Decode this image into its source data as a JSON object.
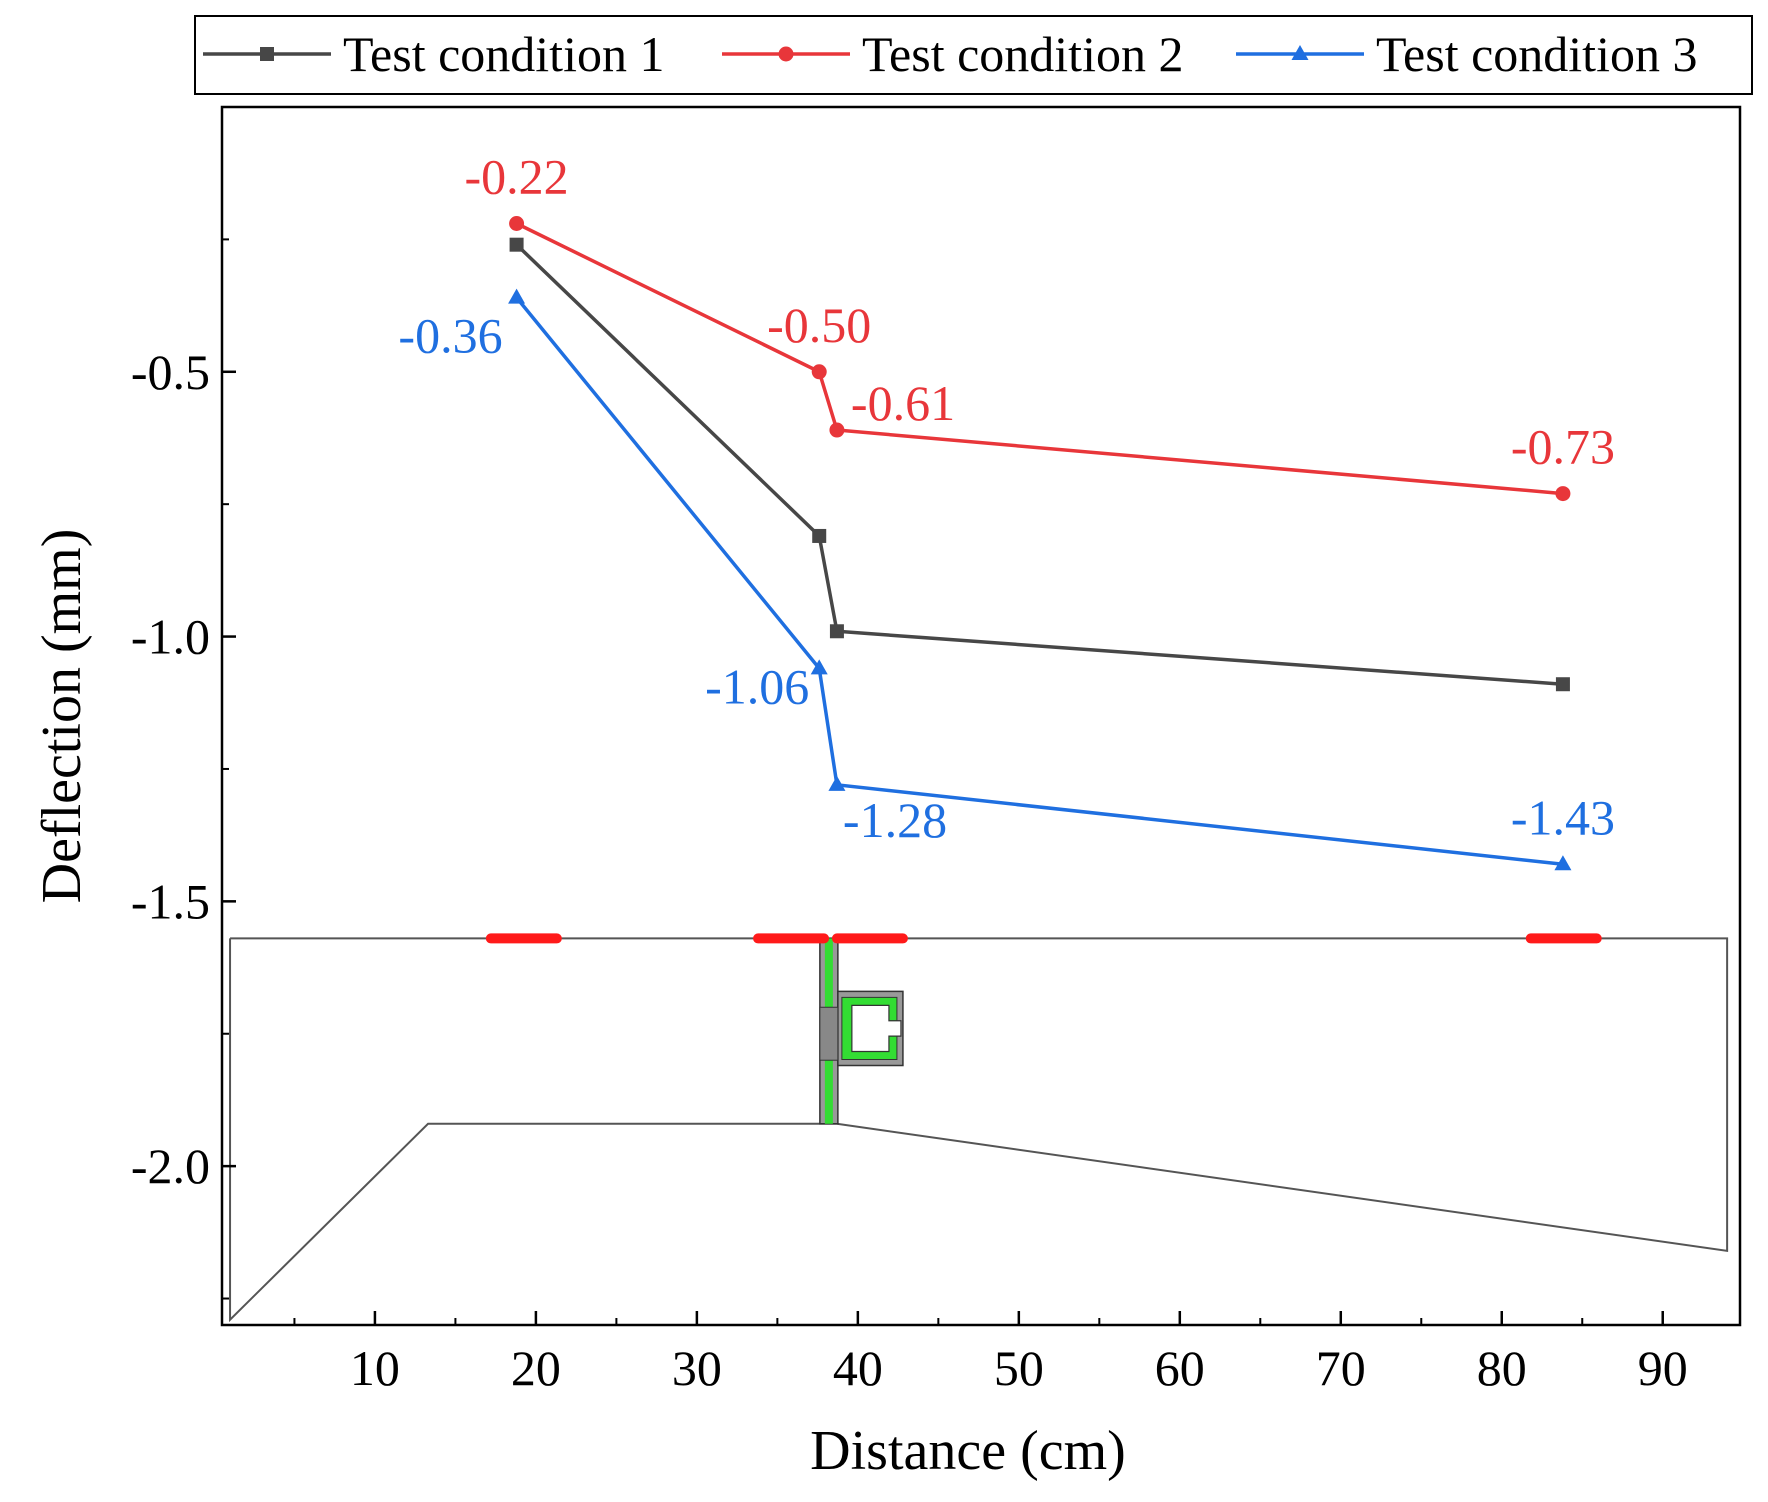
{
  "chart_data": {
    "type": "line",
    "xlabel": "Distance (cm)",
    "ylabel": "Deflection (mm)",
    "xlim": [
      0.5,
      94.8
    ],
    "ylim": [
      -2.3,
      0.0
    ],
    "xticks": [
      10,
      20,
      30,
      40,
      50,
      60,
      70,
      80,
      90
    ],
    "xtick_labels": [
      "10",
      "20",
      "30",
      "40",
      "50",
      "60",
      "70",
      "80",
      "90"
    ],
    "yticks": [
      -0.5,
      -1.0,
      -1.5,
      -2.0
    ],
    "ytick_labels": [
      "-0.5",
      "-1.0",
      "-1.5",
      "-2.0"
    ],
    "legend_position": "top",
    "series": [
      {
        "name": "Test condition 1",
        "color": "#474747",
        "marker": "square",
        "x": [
          18.8,
          37.6,
          38.7,
          83.8
        ],
        "y": [
          -0.26,
          -0.81,
          -0.99,
          -1.09
        ],
        "labels": [
          null,
          null,
          null,
          null
        ]
      },
      {
        "name": "Test condition 2",
        "color": "#e8363a",
        "marker": "circle",
        "x": [
          18.8,
          37.6,
          38.7,
          83.8
        ],
        "y": [
          -0.22,
          -0.5,
          -0.61,
          -0.73
        ],
        "labels": [
          "-0.22",
          "-0.50",
          "-0.61",
          "-0.73"
        ]
      },
      {
        "name": "Test condition 3",
        "color": "#1f6fe0",
        "marker": "triangle",
        "x": [
          18.8,
          37.6,
          38.7,
          83.8
        ],
        "y": [
          -0.36,
          -1.06,
          -1.28,
          -1.43
        ],
        "labels": [
          "-0.36",
          "-1.06",
          "-1.28",
          "-1.43"
        ]
      }
    ],
    "inset": {
      "description_colors": {
        "outline": "#555555",
        "load_marks": "#ff1a1a",
        "joint_fill": "#33dd33"
      },
      "load_positions_cm": [
        [
          17.2,
          21.3
        ],
        [
          33.8,
          37.9
        ],
        [
          38.7,
          42.8
        ],
        [
          81.8,
          85.9
        ]
      ]
    }
  }
}
